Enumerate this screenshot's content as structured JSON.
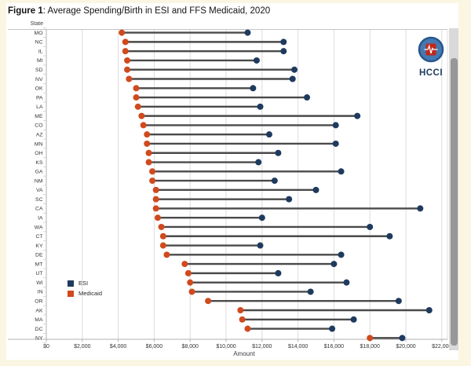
{
  "page": {
    "title_bold": "Figure 1",
    "title_rest": ": Average Spending/Birth in ESI and FFS Medicaid, 2020"
  },
  "logo": {
    "text": "HCCI"
  },
  "chart_data": {
    "type": "dumbbell",
    "title": "Figure 1: Average Spending/Birth in ESI and FFS Medicaid, 2020",
    "y_axis_label": "State",
    "x_axis_label": "Amount",
    "xlim": [
      0,
      22000
    ],
    "grid": "vertical",
    "legend_position": "inside-left-lower",
    "x_ticks": [
      "$0",
      "$2,000",
      "$4,000",
      "$6,000",
      "$8,000",
      "$10,000",
      "$12,000",
      "$14,000",
      "$16,000",
      "$18,000",
      "$20,000",
      "$22,000"
    ],
    "x_tick_values": [
      0,
      2000,
      4000,
      6000,
      8000,
      10000,
      12000,
      14000,
      16000,
      18000,
      20000,
      22000
    ],
    "legend": [
      {
        "name": "ESI",
        "color": "#1e3a5f"
      },
      {
        "name": "Medicaid",
        "color": "#d04a1e"
      }
    ],
    "colors": {
      "esi": "#1e3a5f",
      "medicaid": "#d04a1e",
      "connector": "#4a4a4a"
    },
    "categories": [
      "MO",
      "NC",
      "IL",
      "MI",
      "SD",
      "NV",
      "OK",
      "PA",
      "LA",
      "ME",
      "CO",
      "AZ",
      "MN",
      "OH",
      "KS",
      "GA",
      "NM",
      "VA",
      "SC",
      "CA",
      "IA",
      "WA",
      "CT",
      "KY",
      "DE",
      "MT",
      "UT",
      "WI",
      "IN",
      "OR",
      "AK",
      "MA",
      "DC",
      "NY"
    ],
    "series": [
      {
        "name": "Medicaid",
        "values": [
          4200,
          4400,
          4400,
          4500,
          4500,
          4600,
          5000,
          5000,
          5100,
          5300,
          5400,
          5600,
          5600,
          5700,
          5700,
          5900,
          5900,
          6100,
          6100,
          6100,
          6200,
          6400,
          6500,
          6500,
          6700,
          7700,
          7900,
          8000,
          8100,
          9000,
          10800,
          10900,
          11200,
          18000
        ]
      },
      {
        "name": "ESI",
        "values": [
          11200,
          13200,
          13200,
          11700,
          13800,
          13700,
          11500,
          14500,
          11900,
          17300,
          16100,
          12400,
          16100,
          12900,
          11800,
          16400,
          12700,
          15000,
          13500,
          20800,
          12000,
          18000,
          19100,
          11900,
          16400,
          16000,
          12900,
          16700,
          14700,
          19600,
          21300,
          17100,
          15900,
          19800
        ]
      }
    ]
  }
}
